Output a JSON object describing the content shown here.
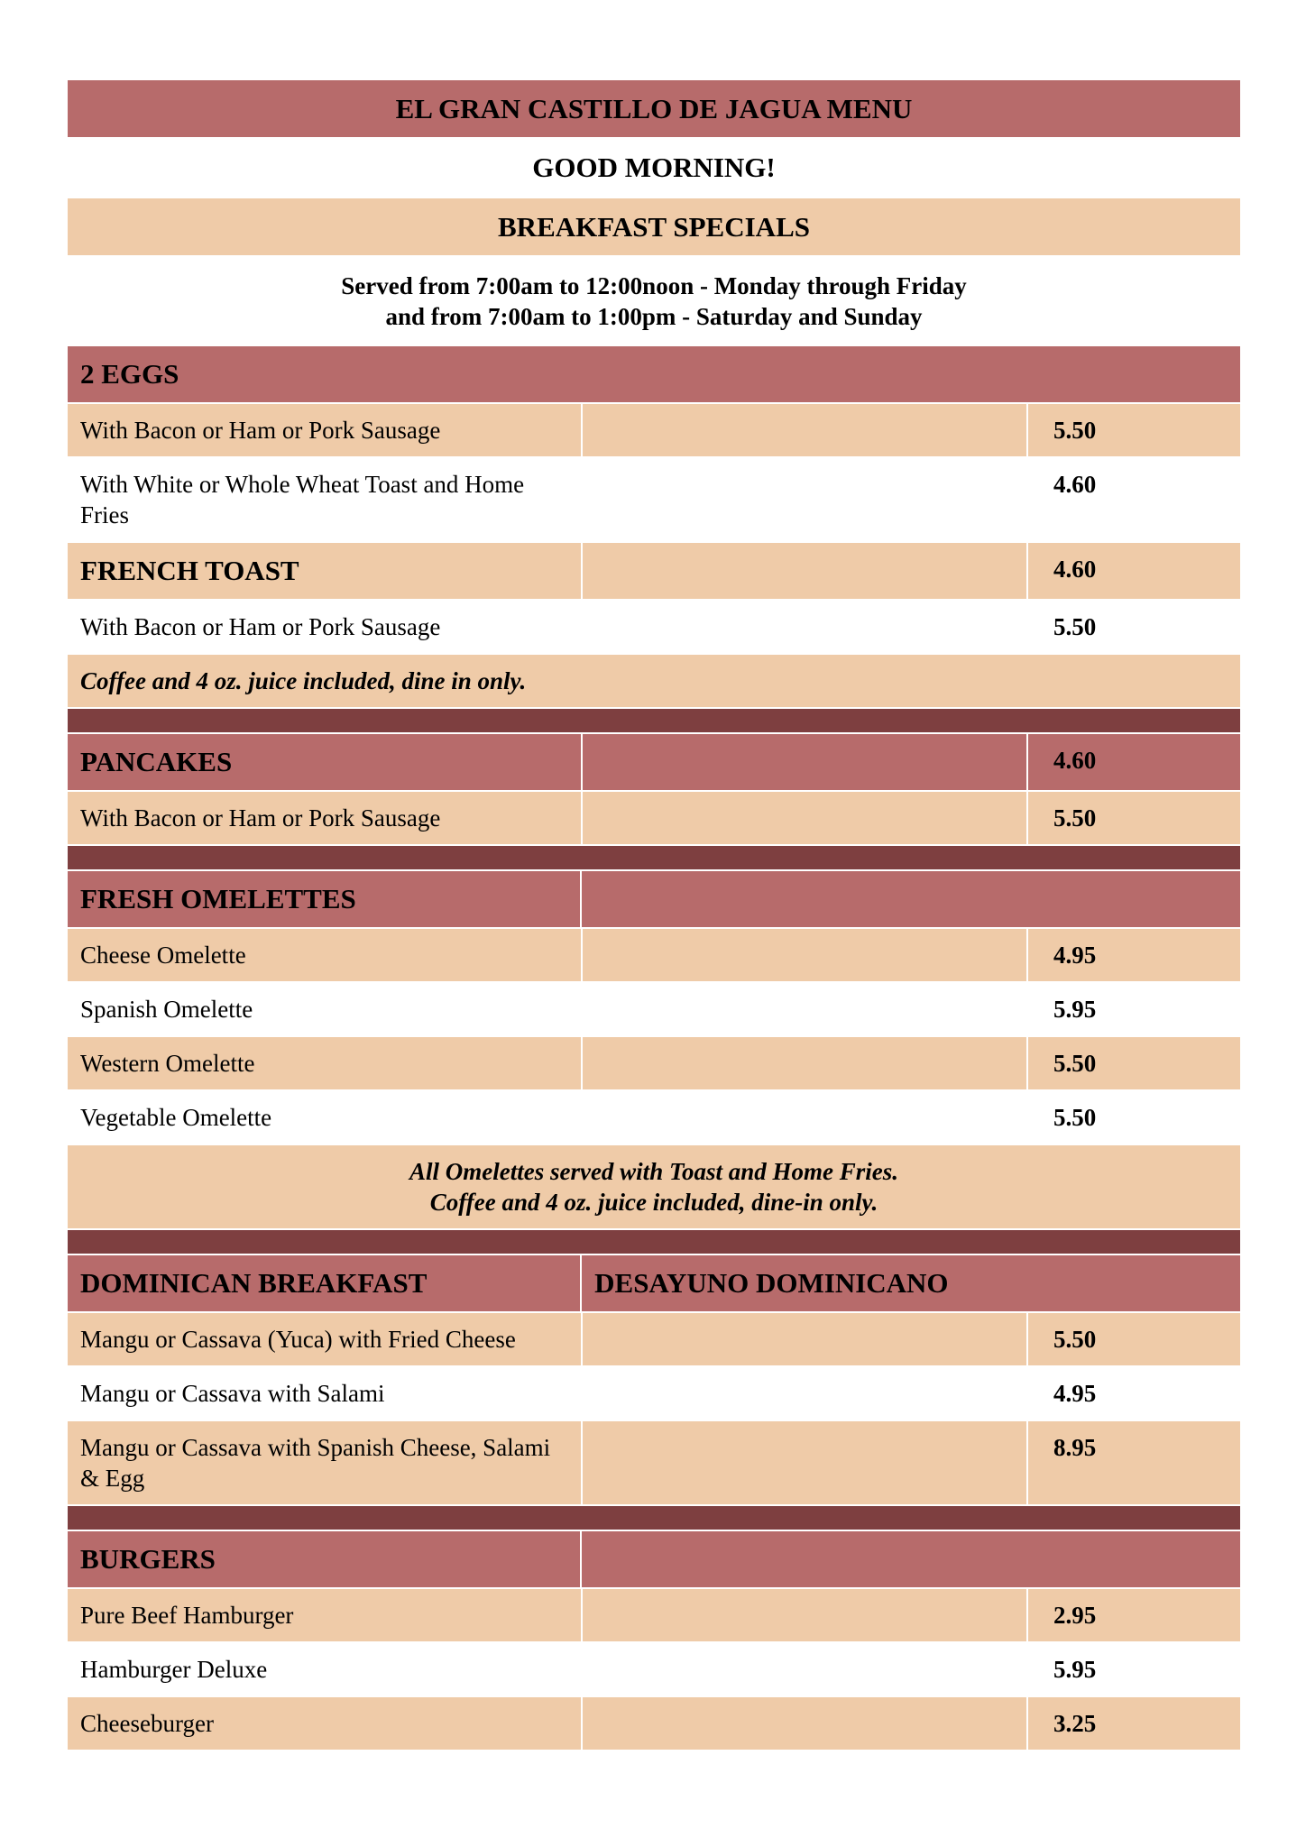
{
  "colors": {
    "rose": "#b76b6b",
    "peach": "#efcba8",
    "dark": "#7e3f40"
  },
  "header": {
    "title": "EL GRAN CASTILLO DE JAGUA MENU",
    "greeting": "GOOD MORNING!",
    "section": "BREAKFAST SPECIALS",
    "hours_line1": "Served from 7:00am to 12:00noon - Monday through Friday",
    "hours_line2": "and from 7:00am to 1:00pm - Saturday and Sunday"
  },
  "rows": [
    {
      "style": "rose",
      "layout": "full",
      "kind": "hdr",
      "text": "2 EGGS"
    },
    {
      "style": "peach",
      "layout": "three",
      "text": "With Bacon or Ham or Pork Sausage",
      "price": "5.50"
    },
    {
      "style": "white",
      "layout": "three",
      "text": "With White or Whole Wheat Toast and Home Fries",
      "price": "4.60"
    },
    {
      "style": "peach",
      "layout": "three",
      "kind": "hdr",
      "text": "FRENCH TOAST",
      "price": "4.60"
    },
    {
      "style": "white",
      "layout": "three",
      "text": "With Bacon or Ham or Pork Sausage",
      "price": "5.50"
    },
    {
      "style": "peach",
      "layout": "full",
      "kind": "note",
      "text": "Coffee and 4 oz. juice included, dine in only."
    },
    {
      "style": "dark"
    },
    {
      "style": "rose",
      "layout": "three",
      "kind": "hdr",
      "text": "PANCAKES",
      "price": "4.60"
    },
    {
      "style": "peach",
      "layout": "three",
      "text": "With Bacon or Ham or Pork Sausage",
      "price": "5.50"
    },
    {
      "style": "dark"
    },
    {
      "style": "rose",
      "layout": "two",
      "kind": "hdr",
      "text": "FRESH OMELETTES",
      "text2": ""
    },
    {
      "style": "peach",
      "layout": "three",
      "text": "Cheese Omelette",
      "price": "4.95"
    },
    {
      "style": "white",
      "layout": "three",
      "text": "Spanish Omelette",
      "price": "5.95"
    },
    {
      "style": "peach",
      "layout": "three",
      "text": "Western Omelette",
      "price": "5.50"
    },
    {
      "style": "white",
      "layout": "three",
      "text": "Vegetable Omelette",
      "price": "5.50"
    },
    {
      "style": "peach",
      "layout": "full",
      "kind": "note",
      "centered": true,
      "text": "All Omelettes served with Toast and Home Fries.",
      "text_line2": "Coffee and 4 oz. juice included, dine-in only."
    },
    {
      "style": "dark"
    },
    {
      "style": "rose",
      "layout": "two",
      "kind": "hdr",
      "text": "DOMINICAN BREAKFAST",
      "text2": "DESAYUNO DOMINICANO"
    },
    {
      "style": "peach",
      "layout": "three",
      "text": "Mangu or Cassava (Yuca) with Fried Cheese",
      "price": "5.50"
    },
    {
      "style": "white",
      "layout": "three",
      "text": "Mangu or Cassava with Salami",
      "price": "4.95"
    },
    {
      "style": "peach",
      "layout": "three",
      "text": "Mangu or Cassava with Spanish Cheese, Salami & Egg",
      "price": "8.95"
    },
    {
      "style": "dark"
    },
    {
      "style": "rose",
      "layout": "two",
      "kind": "hdr",
      "text": "BURGERS",
      "text2": ""
    },
    {
      "style": "peach",
      "layout": "three",
      "text": "Pure Beef Hamburger",
      "price": "2.95"
    },
    {
      "style": "white",
      "layout": "three",
      "text": "Hamburger Deluxe",
      "price": "5.95"
    },
    {
      "style": "peach",
      "layout": "three",
      "text": "Cheeseburger",
      "price": "3.25"
    }
  ]
}
